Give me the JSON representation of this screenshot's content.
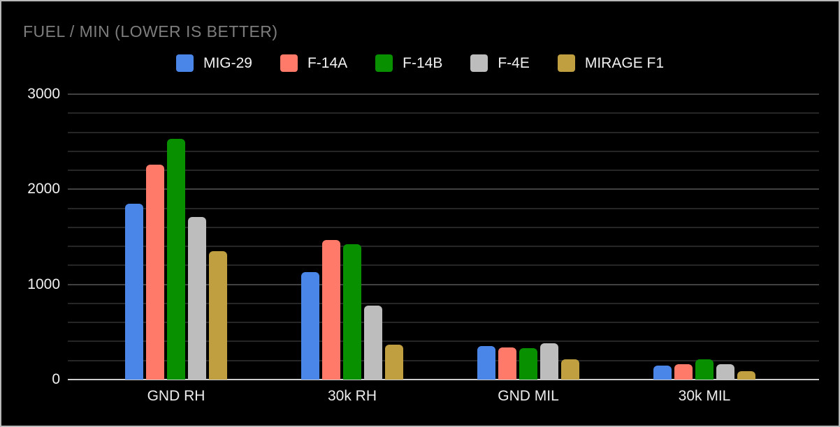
{
  "chart_data": {
    "type": "bar",
    "title": "FUEL / MIN (LOWER IS BETTER)",
    "categories": [
      "GND RH",
      "30k RH",
      "GND MIL",
      "30k MIL"
    ],
    "series": [
      {
        "name": "MIG-29",
        "color": "#4a86e8",
        "values": [
          1850,
          1130,
          355,
          145
        ]
      },
      {
        "name": "F-14A",
        "color": "#ff7a68",
        "values": [
          2260,
          1470,
          340,
          160
        ]
      },
      {
        "name": "F-14B",
        "color": "#089000",
        "values": [
          2530,
          1420,
          330,
          215
        ]
      },
      {
        "name": "F-4E",
        "color": "#bdbdbd",
        "values": [
          1710,
          775,
          380,
          160
        ]
      },
      {
        "name": "MIRAGE F1",
        "color": "#bf9f40",
        "values": [
          1350,
          365,
          210,
          85
        ]
      }
    ],
    "ylim": [
      0,
      3000
    ],
    "yticks": [
      "0",
      "1000",
      "2000",
      "3000"
    ],
    "minor_gridline_step": 200,
    "grid": true,
    "legend_position": "top-center",
    "note_lower_is_better": true,
    "colors": {
      "background": "#000000",
      "title_text": "#7d7d7d",
      "axis_text": "#f1f1f1",
      "baseline": "#cccccc",
      "major_gridline": "#414141",
      "minor_gridline": "#262626"
    }
  }
}
